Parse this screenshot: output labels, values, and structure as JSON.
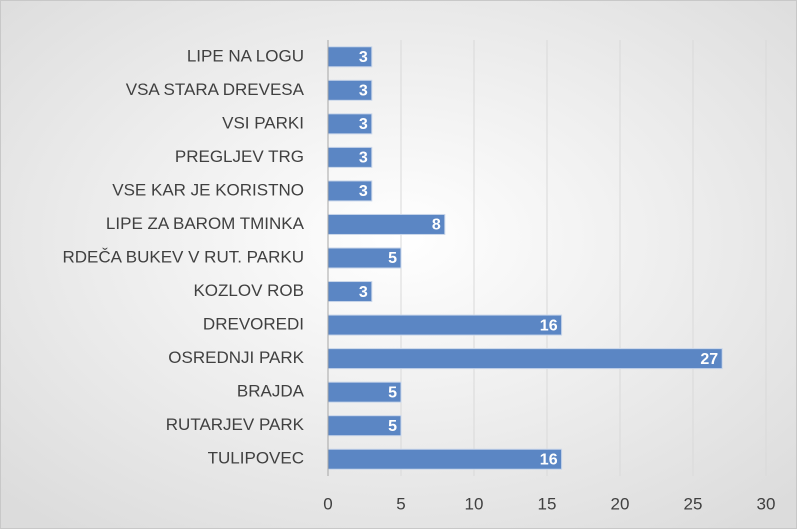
{
  "chart_data": {
    "type": "bar",
    "orientation": "horizontal",
    "categories": [
      "LIPE NA LOGU",
      "VSA STARA DREVESA",
      "VSI PARKI",
      "PREGLJEV TRG",
      "VSE KAR JE KORISTNO",
      "LIPE ZA BAROM TMINKA",
      "RDEČA BUKEV V RUT. PARKU",
      "KOZLOV ROB",
      "DREVOREDI",
      "OSREDNJI PARK",
      "BRAJDA",
      "RUTARJEV PARK",
      "TULIPOVEC"
    ],
    "values": [
      3,
      3,
      3,
      3,
      3,
      8,
      5,
      3,
      16,
      27,
      5,
      5,
      16
    ],
    "color": "#5b86c4",
    "xlim": [
      0,
      30
    ],
    "xticks": [
      0,
      5,
      10,
      15,
      20,
      25,
      30
    ],
    "grid": true
  }
}
